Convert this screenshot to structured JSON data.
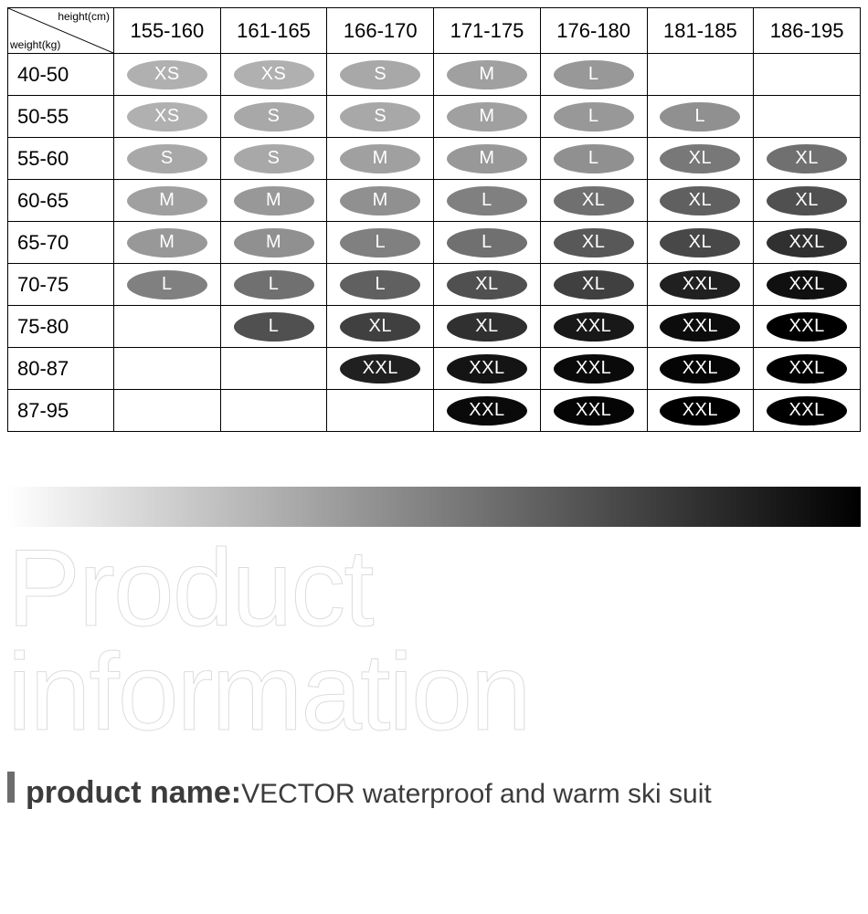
{
  "table": {
    "corner_top": "height(cm)",
    "corner_bottom": "weight(kg)",
    "height_ranges": [
      "155-160",
      "161-165",
      "166-170",
      "171-175",
      "176-180",
      "181-185",
      "186-195"
    ],
    "weight_ranges": [
      "40-50",
      "50-55",
      "55-60",
      "60-65",
      "65-70",
      "70-75",
      "75-80",
      "80-87",
      "87-95"
    ],
    "cells": [
      [
        "XS",
        "XS",
        "S",
        "M",
        "L",
        "",
        ""
      ],
      [
        "XS",
        "S",
        "S",
        "M",
        "L",
        "L",
        ""
      ],
      [
        "S",
        "S",
        "M",
        "M",
        "L",
        "XL",
        "XL"
      ],
      [
        "M",
        "M",
        "M",
        "L",
        "XL",
        "XL",
        "XL"
      ],
      [
        "M",
        "M",
        "L",
        "L",
        "XL",
        "XL",
        "XXL"
      ],
      [
        "L",
        "L",
        "L",
        "XL",
        "XL",
        "XXL",
        "XXL"
      ],
      [
        "",
        "L",
        "XL",
        "XL",
        "XXL",
        "XXL",
        "XXL"
      ],
      [
        "",
        "",
        "XXL",
        "XXL",
        "XXL",
        "XXL",
        "XXL"
      ],
      [
        "",
        "",
        "",
        "XXL",
        "XXL",
        "XXL",
        "XXL"
      ]
    ],
    "cell_colors": [
      [
        "#b0b0b0",
        "#b0b0b0",
        "#a8a8a8",
        "#a0a0a0",
        "#989898",
        "",
        ""
      ],
      [
        "#b0b0b0",
        "#a8a8a8",
        "#a8a8a8",
        "#a0a0a0",
        "#989898",
        "#909090",
        ""
      ],
      [
        "#a8a8a8",
        "#a8a8a8",
        "#a0a0a0",
        "#989898",
        "#909090",
        "#787878",
        "#707070"
      ],
      [
        "#a0a0a0",
        "#989898",
        "#909090",
        "#808080",
        "#707070",
        "#606060",
        "#505050"
      ],
      [
        "#989898",
        "#909090",
        "#808080",
        "#707070",
        "#585858",
        "#484848",
        "#303030"
      ],
      [
        "#808080",
        "#707070",
        "#606060",
        "#505050",
        "#404040",
        "#202020",
        "#101010"
      ],
      [
        "",
        "#505050",
        "#404040",
        "#303030",
        "#181818",
        "#0c0c0c",
        "#000000"
      ],
      [
        "",
        "",
        "#202020",
        "#141414",
        "#0a0a0a",
        "#050505",
        "#000000"
      ],
      [
        "",
        "",
        "",
        "#0a0a0a",
        "#050505",
        "#000000",
        "#000000"
      ]
    ],
    "border_color": "#000000",
    "header_fontsize": 22,
    "label_fontsize": 22,
    "pill_fontsize": 20,
    "pill_text_color": "#ffffff",
    "pill_width": 88,
    "pill_height": 32
  },
  "gradient_bar": {
    "from": "#ffffff",
    "to": "#000000",
    "height": 44
  },
  "watermark": {
    "line1": "Product",
    "line2": "information",
    "stroke_color": "#dcdcdc",
    "fontsize": 120
  },
  "product": {
    "label": "product name:",
    "value": "VECTOR waterproof and warm ski suit",
    "bar_color": "#6c6c6c",
    "label_color": "#3c3c3c",
    "label_fontsize": 34,
    "value_fontsize": 30
  }
}
